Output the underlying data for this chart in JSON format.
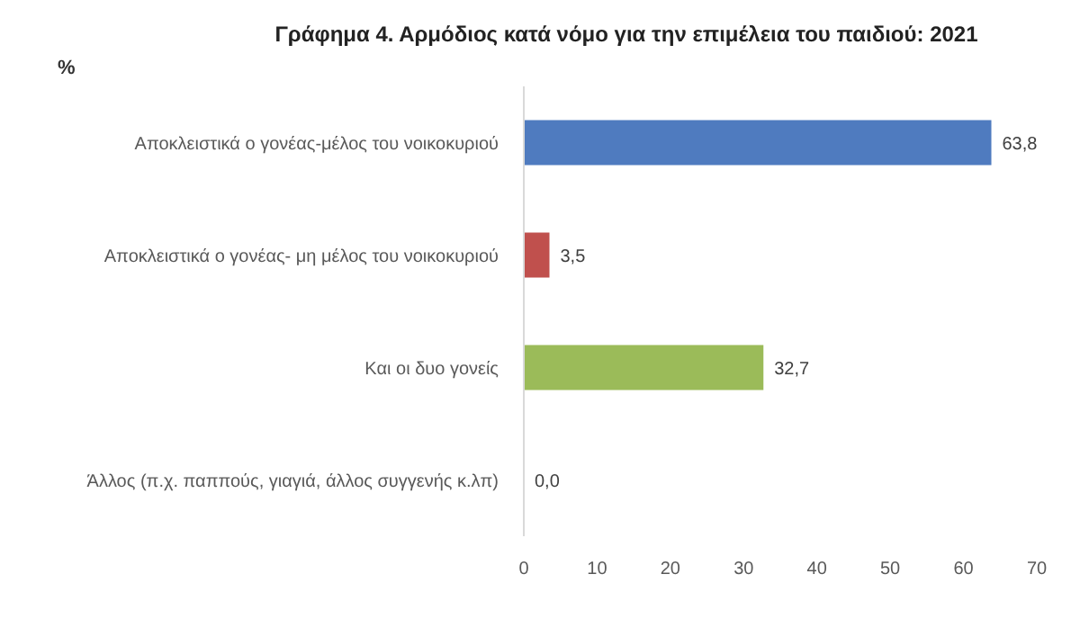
{
  "chart_data": {
    "type": "bar",
    "orientation": "horizontal",
    "title": "Γράφημα 4. Αρμόδιος κατά νόμο για την επιμέλεια του παιδιού: 2021",
    "annotations": [
      "%"
    ],
    "categories": [
      "Αποκλειστικά ο γονέας-μέλος του νοικοκυριού",
      "Αποκλειστικά ο γονέας- μη μέλος του νοικοκυριού",
      "Και οι δυο γονείς",
      "Άλλος (π.χ. παππούς, γιαγιά, άλλος συγγενής κ.λπ)"
    ],
    "values": [
      63.8,
      3.5,
      32.7,
      0.0
    ],
    "colors": [
      "#4f7bbf",
      "#c0504d",
      "#9bbb59",
      "#f79646"
    ],
    "value_labels": [
      "63,8",
      "3,5",
      "32,7",
      "0,0"
    ],
    "xlim": [
      0,
      70
    ],
    "xticks": [
      0,
      10,
      20,
      30,
      40,
      50,
      60,
      70
    ]
  }
}
